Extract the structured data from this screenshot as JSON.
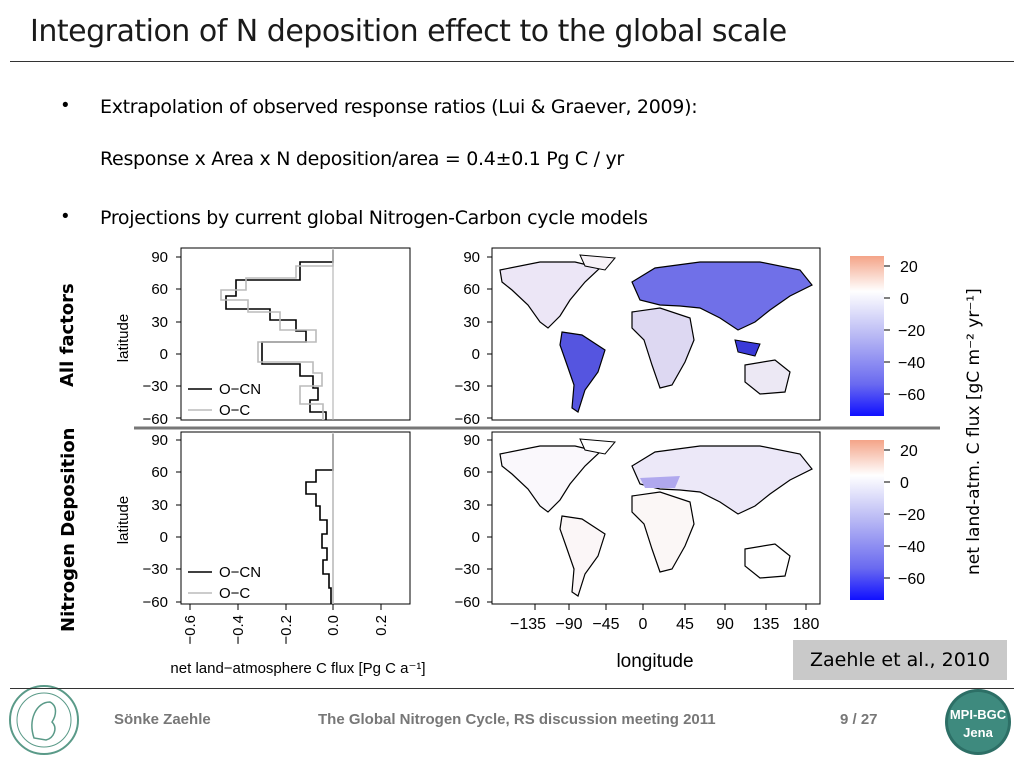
{
  "slide": {
    "title": "Integration of N deposition effect to the global scale",
    "bullets": [
      {
        "symbol": "•",
        "text": "Extrapolation of observed response ratios (Lui & Graever, 2009):"
      },
      {
        "symbol": "•",
        "text": "Projections by current global Nitrogen-Carbon cycle models"
      }
    ],
    "equation": "Response x Area x N deposition/area = 0.4±0.1 Pg C / yr"
  },
  "figure": {
    "row_labels": [
      "All factors",
      "Nitrogen Deposition"
    ],
    "profile_ylabel": "latitude",
    "lat_ticks": [
      "90",
      "60",
      "30",
      "0",
      "−30",
      "−60"
    ],
    "flux_ticks": [
      "−0.6",
      "−0.4",
      "−0.2",
      "0.0",
      "0.2"
    ],
    "profile_xlabel": "net land−atmosphere C flux [Pg C a⁻¹]",
    "legend": [
      "O−CN",
      "O−C"
    ],
    "map_xlabel": "longitude",
    "lon_ticks": [
      "−135",
      "−90",
      "−45",
      "0",
      "45",
      "90",
      "135",
      "180"
    ],
    "colorbar_ticks": [
      "20",
      "0",
      "−20",
      "−40",
      "−60"
    ],
    "colorbar_unit": "net land-atm.  C flux [gC m⁻² yr⁻¹]",
    "colors": {
      "positive": "#f4a488",
      "negative": "#1a1aff",
      "ocn": "#000000",
      "oc": "#bbbbbb"
    }
  },
  "citation": "Zaehle et al., 2010",
  "footer": {
    "author": "Sönke Zaehle",
    "event": "The Global Nitrogen Cycle, RS discussion meeting 2011",
    "page": "9 / 27",
    "logo_right_top": "MPI-BGC",
    "logo_right_bottom": "Jena"
  }
}
